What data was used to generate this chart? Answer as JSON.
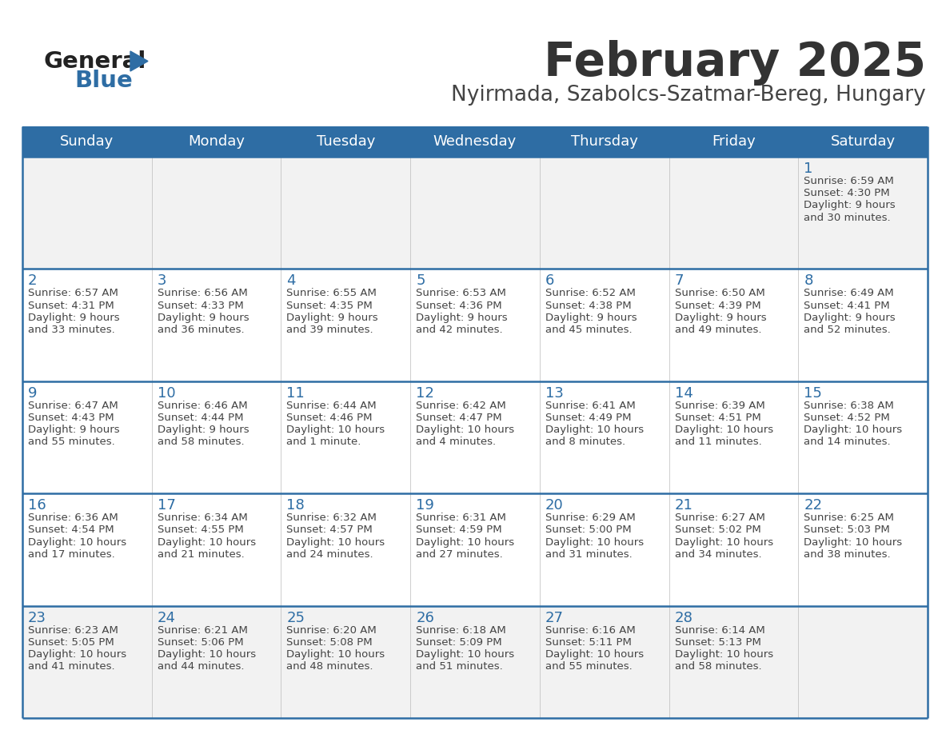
{
  "title": "February 2025",
  "subtitle": "Nyirmada, Szabolcs-Szatmar-Bereg, Hungary",
  "days_of_week": [
    "Sunday",
    "Monday",
    "Tuesday",
    "Wednesday",
    "Thursday",
    "Friday",
    "Saturday"
  ],
  "header_bg": "#2E6DA4",
  "header_text": "#FFFFFF",
  "row1_bg": "#F2F2F2",
  "row_bg": "#FFFFFF",
  "last_row_bg": "#F2F2F2",
  "divider_color": "#2E6DA4",
  "text_color": "#444444",
  "day_num_color": "#2E6DA4",
  "calendar_data": [
    [
      null,
      null,
      null,
      null,
      null,
      null,
      {
        "day": "1",
        "sunrise": "6:59 AM",
        "sunset": "4:30 PM",
        "daylight": "9 hours",
        "daylight2": "and 30 minutes."
      }
    ],
    [
      {
        "day": "2",
        "sunrise": "6:57 AM",
        "sunset": "4:31 PM",
        "daylight": "9 hours",
        "daylight2": "and 33 minutes."
      },
      {
        "day": "3",
        "sunrise": "6:56 AM",
        "sunset": "4:33 PM",
        "daylight": "9 hours",
        "daylight2": "and 36 minutes."
      },
      {
        "day": "4",
        "sunrise": "6:55 AM",
        "sunset": "4:35 PM",
        "daylight": "9 hours",
        "daylight2": "and 39 minutes."
      },
      {
        "day": "5",
        "sunrise": "6:53 AM",
        "sunset": "4:36 PM",
        "daylight": "9 hours",
        "daylight2": "and 42 minutes."
      },
      {
        "day": "6",
        "sunrise": "6:52 AM",
        "sunset": "4:38 PM",
        "daylight": "9 hours",
        "daylight2": "and 45 minutes."
      },
      {
        "day": "7",
        "sunrise": "6:50 AM",
        "sunset": "4:39 PM",
        "daylight": "9 hours",
        "daylight2": "and 49 minutes."
      },
      {
        "day": "8",
        "sunrise": "6:49 AM",
        "sunset": "4:41 PM",
        "daylight": "9 hours",
        "daylight2": "and 52 minutes."
      }
    ],
    [
      {
        "day": "9",
        "sunrise": "6:47 AM",
        "sunset": "4:43 PM",
        "daylight": "9 hours",
        "daylight2": "and 55 minutes."
      },
      {
        "day": "10",
        "sunrise": "6:46 AM",
        "sunset": "4:44 PM",
        "daylight": "9 hours",
        "daylight2": "and 58 minutes."
      },
      {
        "day": "11",
        "sunrise": "6:44 AM",
        "sunset": "4:46 PM",
        "daylight": "10 hours",
        "daylight2": "and 1 minute."
      },
      {
        "day": "12",
        "sunrise": "6:42 AM",
        "sunset": "4:47 PM",
        "daylight": "10 hours",
        "daylight2": "and 4 minutes."
      },
      {
        "day": "13",
        "sunrise": "6:41 AM",
        "sunset": "4:49 PM",
        "daylight": "10 hours",
        "daylight2": "and 8 minutes."
      },
      {
        "day": "14",
        "sunrise": "6:39 AM",
        "sunset": "4:51 PM",
        "daylight": "10 hours",
        "daylight2": "and 11 minutes."
      },
      {
        "day": "15",
        "sunrise": "6:38 AM",
        "sunset": "4:52 PM",
        "daylight": "10 hours",
        "daylight2": "and 14 minutes."
      }
    ],
    [
      {
        "day": "16",
        "sunrise": "6:36 AM",
        "sunset": "4:54 PM",
        "daylight": "10 hours",
        "daylight2": "and 17 minutes."
      },
      {
        "day": "17",
        "sunrise": "6:34 AM",
        "sunset": "4:55 PM",
        "daylight": "10 hours",
        "daylight2": "and 21 minutes."
      },
      {
        "day": "18",
        "sunrise": "6:32 AM",
        "sunset": "4:57 PM",
        "daylight": "10 hours",
        "daylight2": "and 24 minutes."
      },
      {
        "day": "19",
        "sunrise": "6:31 AM",
        "sunset": "4:59 PM",
        "daylight": "10 hours",
        "daylight2": "and 27 minutes."
      },
      {
        "day": "20",
        "sunrise": "6:29 AM",
        "sunset": "5:00 PM",
        "daylight": "10 hours",
        "daylight2": "and 31 minutes."
      },
      {
        "day": "21",
        "sunrise": "6:27 AM",
        "sunset": "5:02 PM",
        "daylight": "10 hours",
        "daylight2": "and 34 minutes."
      },
      {
        "day": "22",
        "sunrise": "6:25 AM",
        "sunset": "5:03 PM",
        "daylight": "10 hours",
        "daylight2": "and 38 minutes."
      }
    ],
    [
      {
        "day": "23",
        "sunrise": "6:23 AM",
        "sunset": "5:05 PM",
        "daylight": "10 hours",
        "daylight2": "and 41 minutes."
      },
      {
        "day": "24",
        "sunrise": "6:21 AM",
        "sunset": "5:06 PM",
        "daylight": "10 hours",
        "daylight2": "and 44 minutes."
      },
      {
        "day": "25",
        "sunrise": "6:20 AM",
        "sunset": "5:08 PM",
        "daylight": "10 hours",
        "daylight2": "and 48 minutes."
      },
      {
        "day": "26",
        "sunrise": "6:18 AM",
        "sunset": "5:09 PM",
        "daylight": "10 hours",
        "daylight2": "and 51 minutes."
      },
      {
        "day": "27",
        "sunrise": "6:16 AM",
        "sunset": "5:11 PM",
        "daylight": "10 hours",
        "daylight2": "and 55 minutes."
      },
      {
        "day": "28",
        "sunrise": "6:14 AM",
        "sunset": "5:13 PM",
        "daylight": "10 hours",
        "daylight2": "and 58 minutes."
      },
      null
    ]
  ]
}
